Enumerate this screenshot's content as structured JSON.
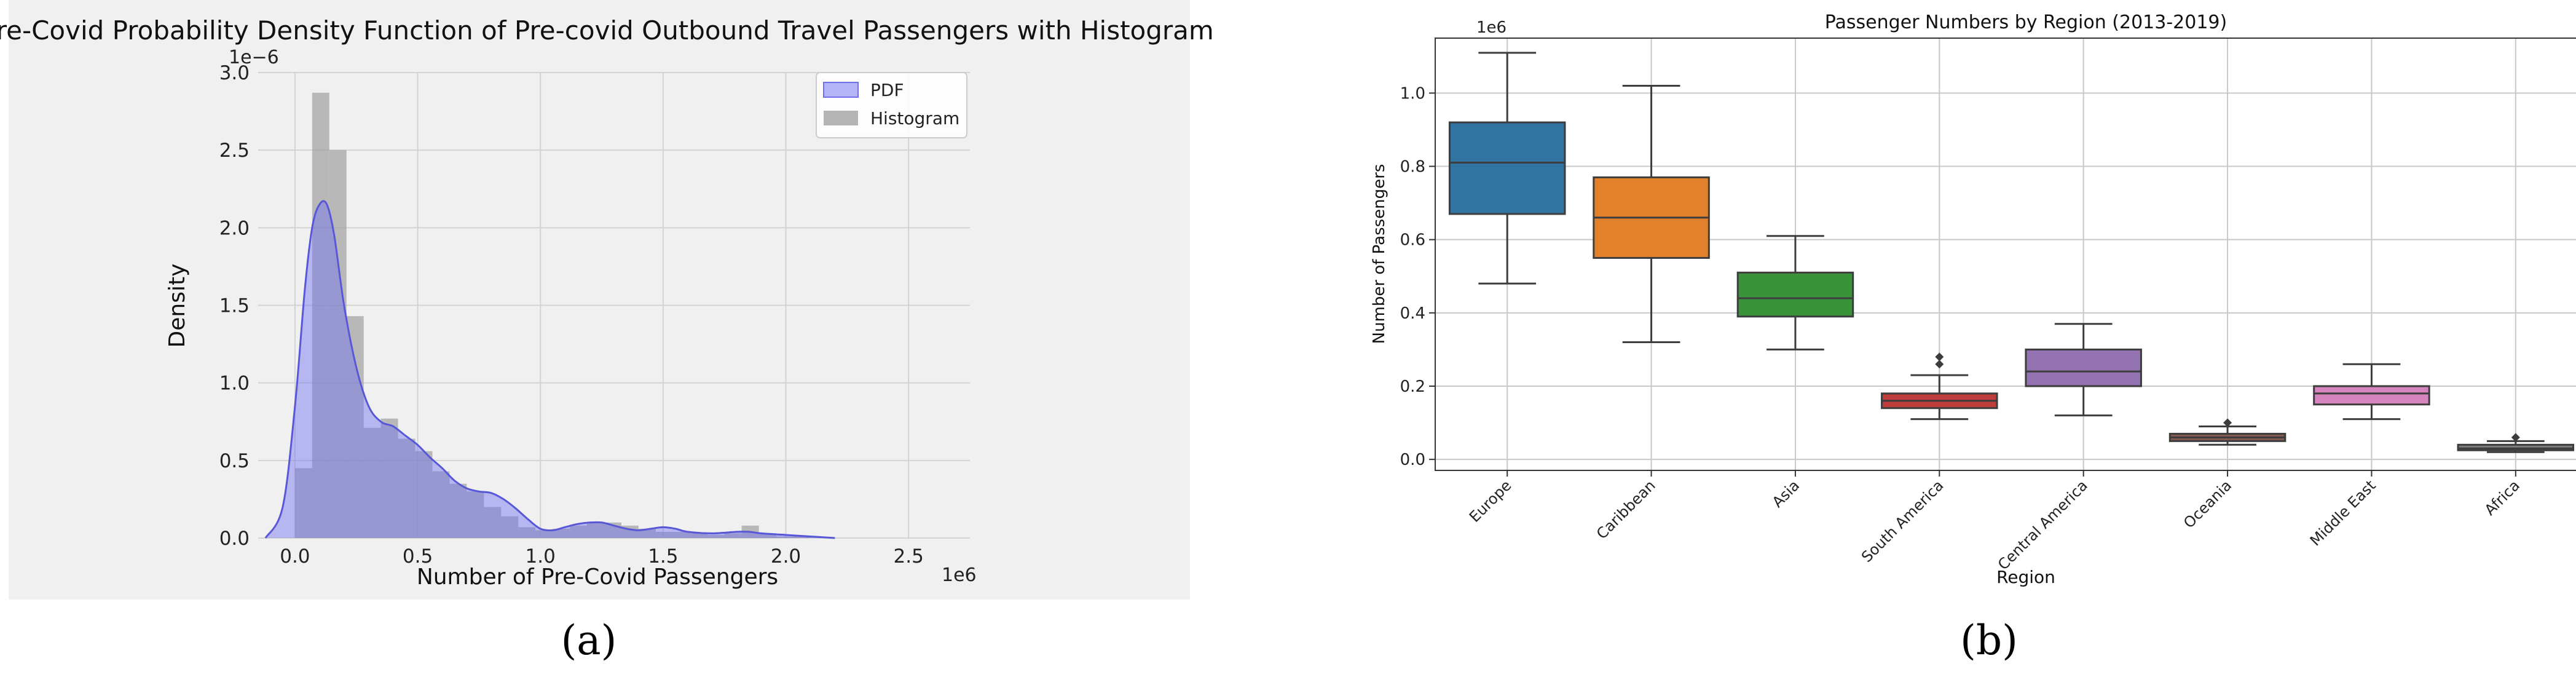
{
  "figure": {
    "panel_labels": [
      "(a)",
      "(b)"
    ]
  },
  "chart_data": [
    {
      "type": "area",
      "title": "Pre-Covid Probability Density Function of Pre-covid Outbound Travel Passengers with Histogram",
      "xlabel": "Number of Pre-Covid Passengers",
      "ylabel": "Density",
      "x_scale_label": "1e6",
      "y_scale_label": "1e−6",
      "xlim": [
        -0.15,
        2.75
      ],
      "ylim": [
        0,
        3.0
      ],
      "x_ticks": [
        "0.0",
        "0.5",
        "1.0",
        "1.5",
        "2.0",
        "2.5"
      ],
      "y_ticks": [
        "0.0",
        "0.5",
        "1.0",
        "1.5",
        "2.0",
        "2.5",
        "3.0"
      ],
      "grid": true,
      "legend_position": "top-right",
      "colors": {
        "pdf": "#6f6ff0",
        "histogram": "#9a9a9a",
        "background": "#f0f0f0"
      },
      "series": [
        {
          "name": "PDF",
          "kind": "kde",
          "x": [
            -0.12,
            -0.05,
            0.0,
            0.04,
            0.07,
            0.1,
            0.13,
            0.16,
            0.2,
            0.25,
            0.3,
            0.35,
            0.4,
            0.45,
            0.5,
            0.55,
            0.6,
            0.65,
            0.7,
            0.75,
            0.8,
            0.85,
            0.9,
            0.95,
            1.0,
            1.05,
            1.1,
            1.15,
            1.2,
            1.25,
            1.3,
            1.35,
            1.4,
            1.45,
            1.5,
            1.55,
            1.6,
            1.7,
            1.8,
            1.85,
            1.9,
            2.0,
            2.1,
            2.2
          ],
          "y": [
            0.0,
            0.2,
            0.85,
            1.6,
            2.0,
            2.15,
            2.15,
            1.95,
            1.5,
            1.1,
            0.85,
            0.75,
            0.72,
            0.66,
            0.6,
            0.52,
            0.45,
            0.37,
            0.32,
            0.3,
            0.29,
            0.25,
            0.19,
            0.12,
            0.06,
            0.05,
            0.07,
            0.09,
            0.1,
            0.1,
            0.08,
            0.06,
            0.05,
            0.06,
            0.07,
            0.06,
            0.04,
            0.03,
            0.04,
            0.04,
            0.03,
            0.02,
            0.01,
            0.0
          ]
        },
        {
          "name": "Histogram",
          "kind": "histogram",
          "bin_edges": [
            0.0,
            0.07,
            0.14,
            0.21,
            0.28,
            0.35,
            0.42,
            0.49,
            0.56,
            0.63,
            0.7,
            0.77,
            0.84,
            0.91,
            0.98,
            1.05,
            1.12,
            1.19,
            1.26,
            1.33,
            1.4,
            1.47,
            1.54,
            1.61,
            1.68,
            1.75,
            1.82,
            1.89,
            1.96,
            2.03,
            2.1,
            2.17
          ],
          "values": [
            0.45,
            2.87,
            2.5,
            1.43,
            0.71,
            0.77,
            0.64,
            0.56,
            0.43,
            0.35,
            0.3,
            0.2,
            0.14,
            0.07,
            0.05,
            0.06,
            0.08,
            0.1,
            0.1,
            0.08,
            0.06,
            0.04,
            0.04,
            0.03,
            0.02,
            0.03,
            0.08,
            0.03,
            0.01,
            0.01,
            0.0
          ]
        }
      ]
    },
    {
      "type": "box",
      "title": "Passenger Numbers by Region (2013-2019)",
      "xlabel": "Region",
      "ylabel": "Number of Passengers",
      "y_scale_label": "1e6",
      "ylim": [
        -0.03,
        1.15
      ],
      "y_ticks": [
        "0.0",
        "0.2",
        "0.4",
        "0.6",
        "0.8",
        "1.0"
      ],
      "grid": true,
      "categories": [
        "Europe",
        "Caribbean",
        "Asia",
        "South America",
        "Central America",
        "Oceania",
        "Middle East",
        "Africa"
      ],
      "boxes": [
        {
          "label": "Europe",
          "color": "#3274a1",
          "whisker_low": 0.48,
          "q1": 0.67,
          "median": 0.81,
          "q3": 0.92,
          "whisker_high": 1.11,
          "outliers": []
        },
        {
          "label": "Caribbean",
          "color": "#e1812c",
          "whisker_low": 0.32,
          "q1": 0.55,
          "median": 0.66,
          "q3": 0.77,
          "whisker_high": 1.02,
          "outliers": []
        },
        {
          "label": "Asia",
          "color": "#3a923a",
          "whisker_low": 0.3,
          "q1": 0.39,
          "median": 0.44,
          "q3": 0.51,
          "whisker_high": 0.61,
          "outliers": []
        },
        {
          "label": "South America",
          "color": "#c03d3e",
          "whisker_low": 0.11,
          "q1": 0.14,
          "median": 0.16,
          "q3": 0.18,
          "whisker_high": 0.23,
          "outliers": [
            0.26,
            0.28
          ]
        },
        {
          "label": "Central America",
          "color": "#9372b2",
          "whisker_low": 0.12,
          "q1": 0.2,
          "median": 0.24,
          "q3": 0.3,
          "whisker_high": 0.37,
          "outliers": []
        },
        {
          "label": "Oceania",
          "color": "#845b53",
          "whisker_low": 0.04,
          "q1": 0.05,
          "median": 0.06,
          "q3": 0.07,
          "whisker_high": 0.09,
          "outliers": [
            0.1
          ]
        },
        {
          "label": "Middle East",
          "color": "#d684bd",
          "whisker_low": 0.11,
          "q1": 0.15,
          "median": 0.18,
          "q3": 0.2,
          "whisker_high": 0.26,
          "outliers": []
        },
        {
          "label": "Africa",
          "color": "#7f7f7f",
          "whisker_low": 0.02,
          "q1": 0.025,
          "median": 0.03,
          "q3": 0.04,
          "whisker_high": 0.05,
          "outliers": [
            0.06
          ]
        }
      ]
    }
  ]
}
